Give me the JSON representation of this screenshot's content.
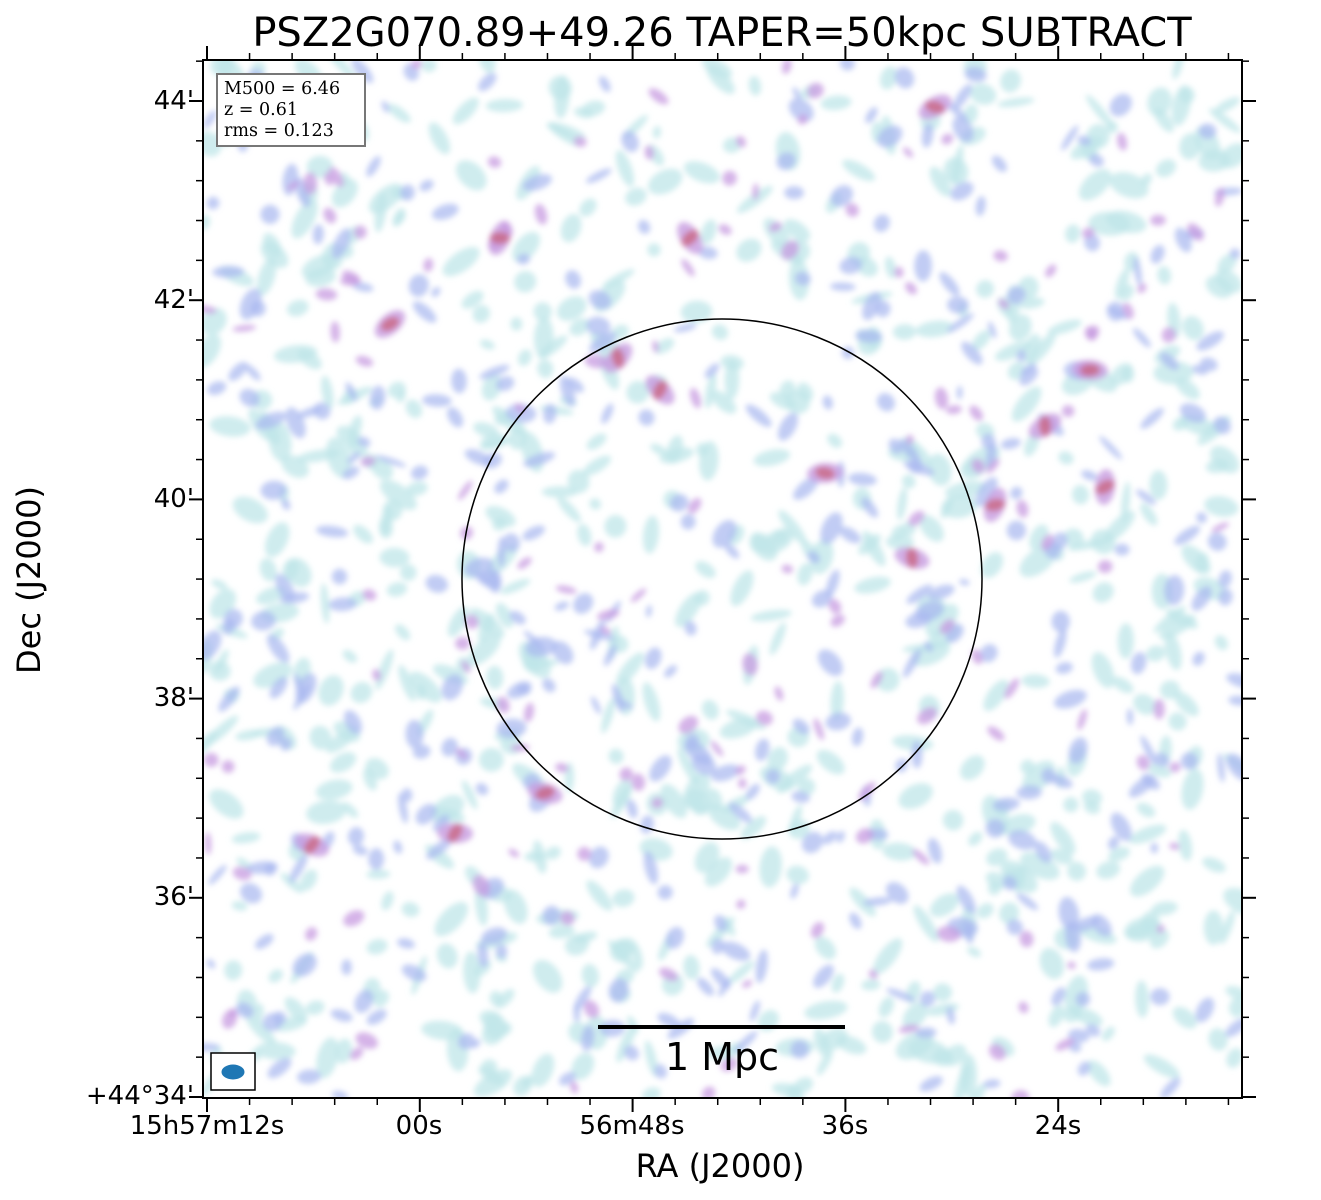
{
  "title": "PSZ2G070.89+49.26 TAPER=50kpc SUBTRACT",
  "xlabel": "RA (J2000)",
  "ylabel": "Dec (J2000)",
  "info": {
    "m500": "M500 = 6.46",
    "z": "z = 0.61",
    "rms": "rms = 0.123"
  },
  "scale_bar_label": "1 Mpc",
  "y_ticks": [
    "44'",
    "42'",
    "40'",
    "38'",
    "36'",
    "+44°34'"
  ],
  "x_ticks": [
    "15h57m12s",
    "00s",
    "56m48s",
    "36s",
    "24s"
  ],
  "colors": {
    "frame": "#000000",
    "circle": "#000000",
    "beam": "#1f77b4",
    "emission_low": "#bfe6e8",
    "emission_mid": "#a7b7f0",
    "emission_high": "#c79be0",
    "emission_peak": "#c8607a"
  },
  "icons": {
    "beam": "beam-ellipse-icon",
    "scale_bar": "scale-bar-icon",
    "aperture": "aperture-circle-icon"
  }
}
